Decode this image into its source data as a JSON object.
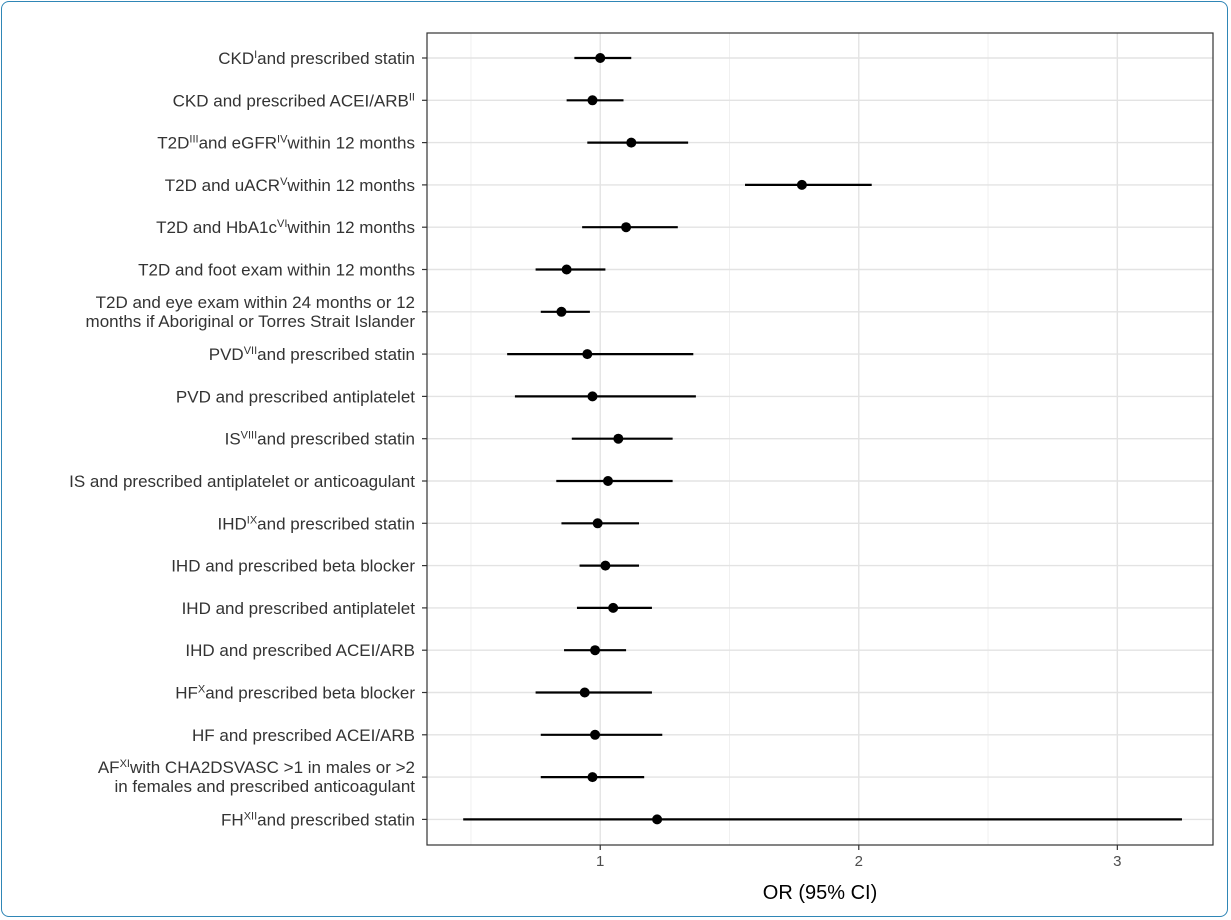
{
  "chart_data": {
    "type": "forest",
    "xlabel": "OR (95% CI)",
    "xlim": [
      0.33,
      3.37
    ],
    "xticks": [
      1,
      2,
      3
    ],
    "grid": true,
    "rows": [
      {
        "label": "CKD and prescribed statin",
        "parts": [
          {
            "t": "CKD"
          },
          {
            "t": "I",
            "sup": true
          },
          {
            "t": "and prescribed statin"
          }
        ],
        "or": 1.0,
        "lo": 0.9,
        "hi": 1.12
      },
      {
        "label": "CKD and prescribed ACEI/ARB",
        "parts": [
          {
            "t": "CKD and prescribed ACEI/ARB"
          },
          {
            "t": "II",
            "sup": true
          }
        ],
        "or": 0.97,
        "lo": 0.87,
        "hi": 1.09
      },
      {
        "label": "T2D and eGFR within 12 months",
        "parts": [
          {
            "t": "T2D"
          },
          {
            "t": "III",
            "sup": true
          },
          {
            "t": "and eGFR"
          },
          {
            "t": "IV",
            "sup": true
          },
          {
            "t": "within 12 months"
          }
        ],
        "or": 1.12,
        "lo": 0.95,
        "hi": 1.34
      },
      {
        "label": "T2D and uACR within 12 months",
        "parts": [
          {
            "t": "T2D and uACR"
          },
          {
            "t": "V",
            "sup": true
          },
          {
            "t": "within 12 months"
          }
        ],
        "or": 1.78,
        "lo": 1.56,
        "hi": 2.05
      },
      {
        "label": "T2D and HbA1c within 12 months",
        "parts": [
          {
            "t": "T2D and HbA1c"
          },
          {
            "t": "VI",
            "sup": true
          },
          {
            "t": "within 12 months"
          }
        ],
        "or": 1.1,
        "lo": 0.93,
        "hi": 1.3
      },
      {
        "label": "T2D and foot exam within 12 months",
        "parts": [
          {
            "t": "T2D and foot exam within 12 months"
          }
        ],
        "or": 0.87,
        "lo": 0.75,
        "hi": 1.02
      },
      {
        "label": "T2D and eye exam within 24 months or 12 months if Aboriginal or Torres Strait Islander",
        "parts": [
          {
            "t": "T2D and eye exam within 24 months or 12"
          }
        ],
        "line2": "months if Aboriginal or Torres Strait Islander",
        "or": 0.85,
        "lo": 0.77,
        "hi": 0.96
      },
      {
        "label": "PVD and prescribed statin",
        "parts": [
          {
            "t": "PVD"
          },
          {
            "t": "VII",
            "sup": true
          },
          {
            "t": "and prescribed statin"
          }
        ],
        "or": 0.95,
        "lo": 0.64,
        "hi": 1.36
      },
      {
        "label": "PVD and prescribed antiplatelet",
        "parts": [
          {
            "t": "PVD and prescribed antiplatelet"
          }
        ],
        "or": 0.97,
        "lo": 0.67,
        "hi": 1.37
      },
      {
        "label": "IS and prescribed statin",
        "parts": [
          {
            "t": "IS"
          },
          {
            "t": "VIII",
            "sup": true
          },
          {
            "t": "and prescribed statin"
          }
        ],
        "or": 1.07,
        "lo": 0.89,
        "hi": 1.28
      },
      {
        "label": "IS and prescribed antiplatelet or anticoagulant",
        "parts": [
          {
            "t": "IS and prescribed antiplatelet or anticoagulant"
          }
        ],
        "or": 1.03,
        "lo": 0.83,
        "hi": 1.28
      },
      {
        "label": "IHD and prescribed statin",
        "parts": [
          {
            "t": "IHD"
          },
          {
            "t": "IX",
            "sup": true
          },
          {
            "t": "and prescribed statin"
          }
        ],
        "or": 0.99,
        "lo": 0.85,
        "hi": 1.15
      },
      {
        "label": "IHD and prescribed beta blocker",
        "parts": [
          {
            "t": "IHD and prescribed beta blocker"
          }
        ],
        "or": 1.02,
        "lo": 0.92,
        "hi": 1.15
      },
      {
        "label": "IHD and prescribed antiplatelet",
        "parts": [
          {
            "t": "IHD and prescribed antiplatelet"
          }
        ],
        "or": 1.05,
        "lo": 0.91,
        "hi": 1.2
      },
      {
        "label": "IHD and prescribed ACEI/ARB",
        "parts": [
          {
            "t": "IHD and prescribed ACEI/ARB"
          }
        ],
        "or": 0.98,
        "lo": 0.86,
        "hi": 1.1
      },
      {
        "label": "HF and prescribed beta blocker",
        "parts": [
          {
            "t": "HF"
          },
          {
            "t": "X",
            "sup": true
          },
          {
            "t": "and prescribed beta blocker"
          }
        ],
        "or": 0.94,
        "lo": 0.75,
        "hi": 1.2
      },
      {
        "label": "HF and prescribed ACEI/ARB",
        "parts": [
          {
            "t": "HF and prescribed ACEI/ARB"
          }
        ],
        "or": 0.98,
        "lo": 0.77,
        "hi": 1.24
      },
      {
        "label": "AF with CHA2DSVASC >1 in males or >2 in females and prescribed anticoagulant",
        "parts": [
          {
            "t": "AF"
          },
          {
            "t": "XI",
            "sup": true
          },
          {
            "t": "with CHA2DSVASC >1 in males or >2"
          }
        ],
        "line2": "in females and prescribed anticoagulant",
        "or": 0.97,
        "lo": 0.77,
        "hi": 1.17
      },
      {
        "label": "FH and prescribed statin",
        "parts": [
          {
            "t": "FH"
          },
          {
            "t": "XII",
            "sup": true
          },
          {
            "t": "and prescribed statin"
          }
        ],
        "or": 1.22,
        "lo": 0.47,
        "hi": 3.25
      }
    ]
  }
}
